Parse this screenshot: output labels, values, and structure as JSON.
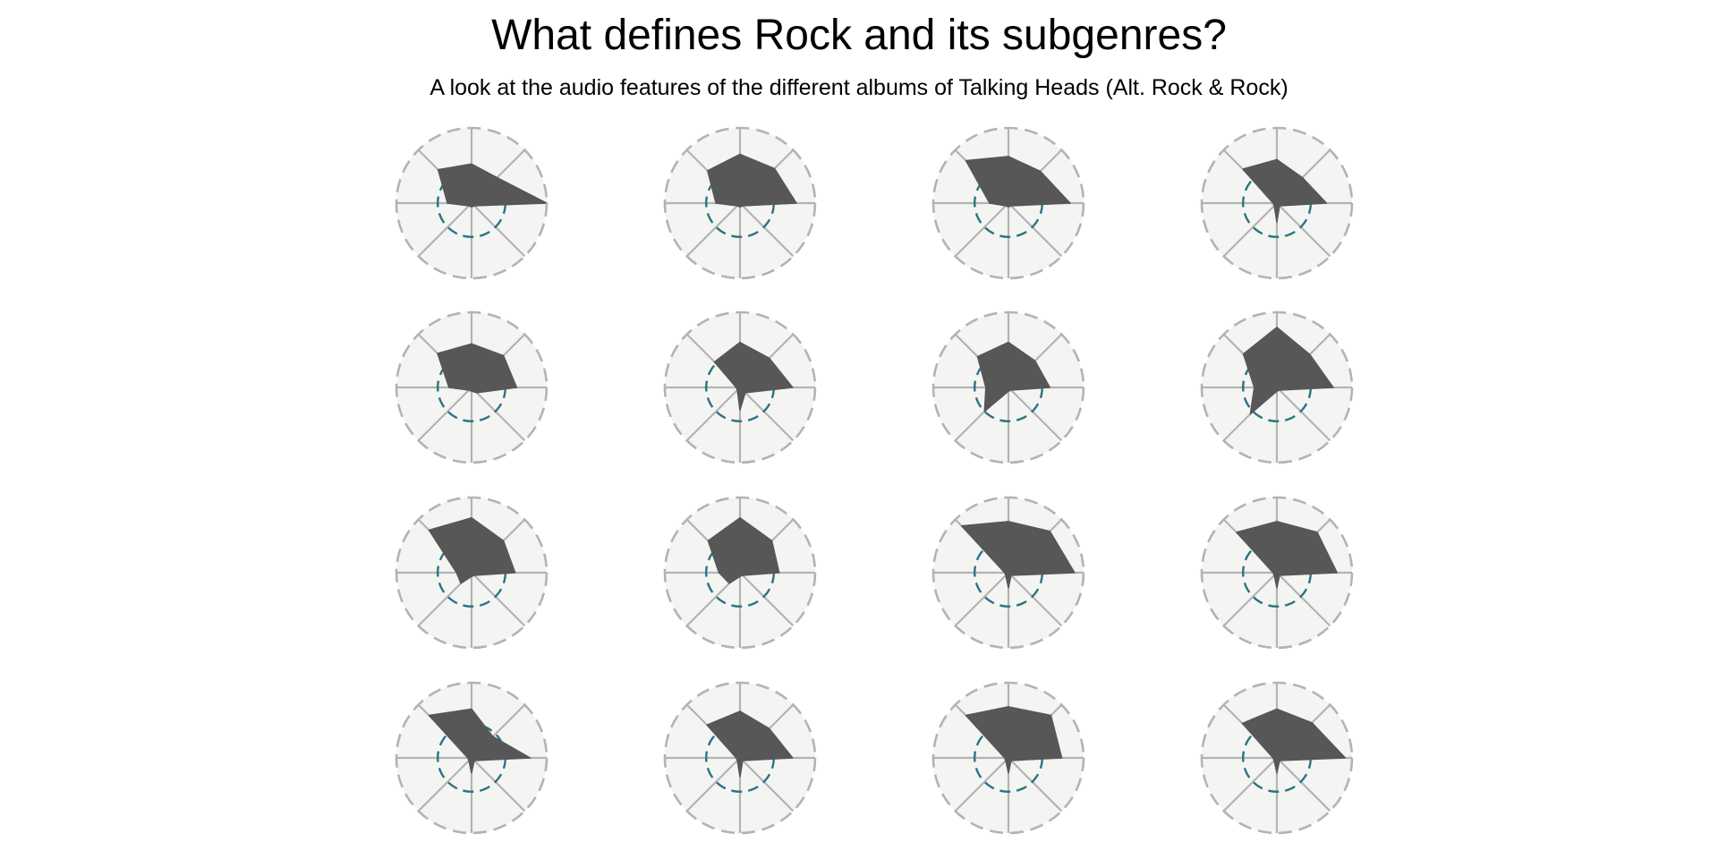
{
  "chart_data": {
    "type": "radar",
    "title": "What defines Rock and its subgenres?",
    "subtitle": "A look at the audio features of the different albums of Talking Heads (Alt. Rock & Rock)",
    "axis_count": 8,
    "scale": [
      0,
      1
    ],
    "reference_level": 0.45,
    "grid": "dashed outer ring",
    "colors": {
      "panel_bg": "#f4f4f2",
      "ring": "#b3b3b3",
      "spoke": "#b3b3b3",
      "reference": "#2a7384",
      "polygon": "#575757"
    },
    "panels": [
      {
        "values": [
          0.52,
          0.48,
          1.0,
          0.05,
          0.05,
          0.05,
          0.32,
          0.63
        ]
      },
      {
        "values": [
          0.65,
          0.65,
          0.75,
          0.05,
          0.05,
          0.05,
          0.32,
          0.61
        ]
      },
      {
        "values": [
          0.62,
          0.6,
          0.82,
          0.05,
          0.05,
          0.05,
          0.25,
          0.8
        ]
      },
      {
        "values": [
          0.58,
          0.48,
          0.66,
          0.05,
          0.25,
          0.05,
          0.05,
          0.64
        ]
      },
      {
        "values": [
          0.58,
          0.6,
          0.6,
          0.1,
          0.05,
          0.05,
          0.3,
          0.64
        ]
      },
      {
        "values": [
          0.6,
          0.55,
          0.7,
          0.1,
          0.3,
          0.05,
          0.05,
          0.48
        ]
      },
      {
        "values": [
          0.6,
          0.5,
          0.55,
          0.05,
          0.05,
          0.45,
          0.3,
          0.58
        ]
      },
      {
        "values": [
          0.8,
          0.62,
          0.75,
          0.05,
          0.05,
          0.5,
          0.3,
          0.63
        ]
      },
      {
        "values": [
          0.73,
          0.6,
          0.58,
          0.05,
          0.05,
          0.2,
          0.2,
          0.8
        ]
      },
      {
        "values": [
          0.73,
          0.6,
          0.52,
          0.05,
          0.05,
          0.2,
          0.28,
          0.6
        ]
      },
      {
        "values": [
          0.68,
          0.78,
          0.88,
          0.05,
          0.2,
          0.05,
          0.05,
          0.88
        ]
      },
      {
        "values": [
          0.68,
          0.76,
          0.8,
          0.05,
          0.2,
          0.05,
          0.05,
          0.76
        ]
      },
      {
        "values": [
          0.65,
          0.4,
          0.78,
          0.05,
          0.2,
          0.05,
          0.05,
          0.8
        ]
      },
      {
        "values": [
          0.62,
          0.55,
          0.7,
          0.05,
          0.25,
          0.05,
          0.05,
          0.62
        ]
      },
      {
        "values": [
          0.68,
          0.8,
          0.71,
          0.05,
          0.2,
          0.05,
          0.05,
          0.8
        ]
      },
      {
        "values": [
          0.65,
          0.66,
          0.91,
          0.05,
          0.2,
          0.05,
          0.05,
          0.65
        ]
      }
    ]
  }
}
